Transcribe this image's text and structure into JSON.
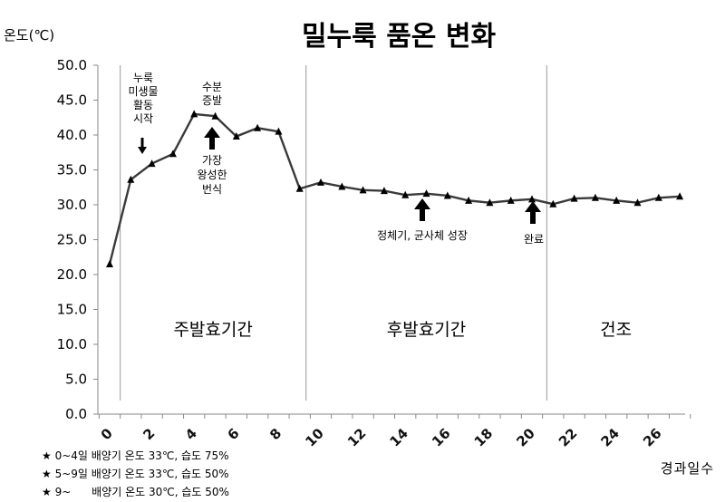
{
  "chart_data": {
    "type": "line",
    "title": "밀누룩 품온 변화",
    "ylabel": "온도(℃)",
    "xlabel": "경과일수",
    "ylim": [
      0,
      50
    ],
    "yticks": [
      "0.0",
      "5.0",
      "10.0",
      "15.0",
      "20.0",
      "25.0",
      "30.0",
      "35.0",
      "40.0",
      "45.0",
      "50.0"
    ],
    "xlim": [
      0,
      27
    ],
    "xticks": [
      "0",
      "2",
      "4",
      "6",
      "8",
      "10",
      "12",
      "14",
      "16",
      "18",
      "20",
      "22",
      "24",
      "26"
    ],
    "marker": "triangle",
    "line_color": "#3a3a3a",
    "grid": false,
    "series": [
      {
        "x": [
          0,
          1,
          2,
          3,
          4,
          5,
          6,
          7,
          8,
          9,
          10,
          11,
          12,
          13,
          14,
          15,
          16,
          17,
          18,
          19,
          20,
          21,
          22,
          23,
          24,
          25,
          26,
          27
        ],
        "values": [
          21.5,
          33.6,
          35.9,
          37.3,
          43.0,
          42.7,
          39.8,
          41.0,
          40.5,
          32.3,
          33.2,
          32.6,
          32.1,
          32.0,
          31.4,
          31.6,
          31.3,
          30.6,
          30.3,
          30.6,
          30.8,
          30.1,
          30.9,
          31.0,
          30.6,
          30.3,
          31.0,
          31.2
        ]
      }
    ],
    "phases": [
      {
        "label": "주발효기간",
        "start": 0,
        "end": 9
      },
      {
        "label": "후발효기간",
        "start": 9,
        "end": 21
      },
      {
        "label": "건조",
        "start": 21,
        "end": 27
      }
    ],
    "annotations": [
      {
        "text_lines": [
          "누룩",
          "미생물",
          "활동",
          "시작"
        ],
        "x": 2,
        "arrow": "down-small"
      },
      {
        "text_lines": [
          "수분",
          "증발"
        ],
        "x": 5,
        "arrow": "up"
      },
      {
        "text_lines": [
          "가장",
          "왕성한",
          "번식"
        ],
        "x": 5,
        "arrow": "none"
      },
      {
        "text_lines": [
          "정체기, 균사체 성장"
        ],
        "x": 15,
        "arrow": "up"
      },
      {
        "text_lines": [
          "완료"
        ],
        "x": 20.5,
        "arrow": "up"
      }
    ]
  },
  "notes": [
    "★ 0~4일 배양기 온도 33℃, 습도 75%",
    "★ 5~9일 배양기 온도 33℃, 습도 50%",
    "★ 9~      배양기 온도 30℃, 습도 50%"
  ]
}
